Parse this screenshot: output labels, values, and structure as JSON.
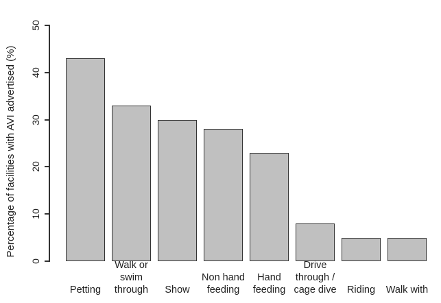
{
  "figure": {
    "background": "#ffffff"
  },
  "chart_data": {
    "type": "bar",
    "title": "",
    "xlabel": "",
    "ylabel": "Percentage of facilities with AVI advertised (%)",
    "ylim": [
      0,
      50
    ],
    "yticks": [
      0,
      10,
      20,
      30,
      40,
      50
    ],
    "categories": [
      [
        "Petting"
      ],
      [
        "Walk or",
        "swim",
        "through"
      ],
      [
        "Show"
      ],
      [
        "Non hand",
        "feeding"
      ],
      [
        "Hand",
        "feeding"
      ],
      [
        "Drive",
        "through /",
        "cage dive"
      ],
      [
        "Riding"
      ],
      [
        "Walk with"
      ]
    ],
    "values": [
      43,
      33,
      30,
      28,
      23,
      8,
      5,
      5
    ],
    "grid": false,
    "legend": "none",
    "bar_fill": "#c0c0c0",
    "bar_border": "#333333",
    "axis_color": "#333333",
    "text_color": "#1f1f1f"
  }
}
